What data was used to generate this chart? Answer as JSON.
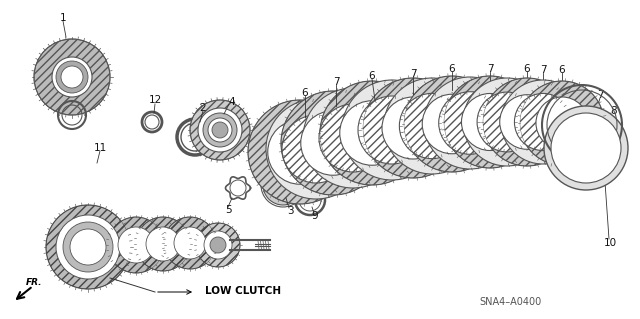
{
  "background_color": "#ffffff",
  "diagram_code": "SNA4–A0400",
  "label_low_clutch": "LOW CLUTCH",
  "label_fr": "FR.",
  "line_color": "#333333",
  "gear_color": "#555555",
  "gear_fill": "#cccccc",
  "hatch_color": "#444444"
}
